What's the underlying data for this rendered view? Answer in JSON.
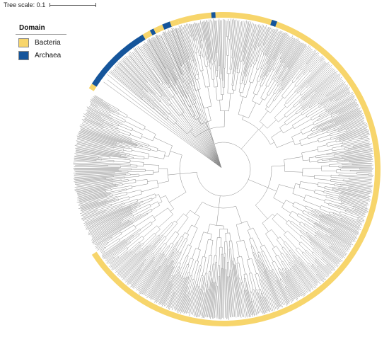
{
  "scale": {
    "label": "Tree scale: 0.1"
  },
  "legend": {
    "title": "Domain",
    "items": [
      {
        "label": "Bacteria",
        "color": "#f7d56b"
      },
      {
        "label": "Archaea",
        "color": "#15559b"
      }
    ]
  },
  "colors": {
    "branch": "#8a8a8a",
    "ring_bacteria": "#f7d56b",
    "ring_archaea": "#15559b"
  }
}
